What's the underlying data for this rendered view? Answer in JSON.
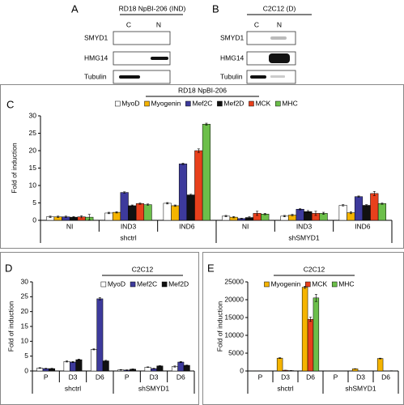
{
  "panel_a": {
    "letter": "A",
    "title": "RD18 NpBI-206 (IND)",
    "lanes": [
      "C",
      "N"
    ],
    "rows": [
      "SMYD1",
      "HMG14",
      "Tubulin"
    ]
  },
  "panel_b": {
    "letter": "B",
    "title": "C2C12 (D)",
    "lanes": [
      "C",
      "N"
    ],
    "rows": [
      "SMYD1",
      "HMG14",
      "Tubulin"
    ]
  },
  "chart_data": [
    {
      "type": "bar",
      "panel": "C",
      "title": "RD18 NpBI-206",
      "ylabel": "Fold of induction",
      "categories": [
        "NI",
        "IND3",
        "IND6",
        "NI",
        "IND3",
        "IND6"
      ],
      "groups": [
        "shctrl",
        "shSMYD1"
      ],
      "ylim": [
        0,
        30
      ],
      "yticks": [
        0,
        5,
        10,
        15,
        20,
        25,
        30
      ],
      "series": [
        {
          "name": "MyoD",
          "color": "#ffffff",
          "values": [
            1.0,
            2.1,
            4.9,
            1.2,
            1.2,
            4.3
          ],
          "errors": [
            0.2,
            0.2,
            0.2,
            0.2,
            0.2,
            0.2
          ]
        },
        {
          "name": "Myogenin",
          "color": "#f5b400",
          "values": [
            1.0,
            2.3,
            4.2,
            0.9,
            1.5,
            2.2
          ],
          "errors": [
            0.2,
            0.2,
            0.2,
            0.2,
            0.2,
            0.3
          ]
        },
        {
          "name": "Mef2C",
          "color": "#3d3a9c",
          "values": [
            1.0,
            8.0,
            16.2,
            0.5,
            3.2,
            6.8
          ],
          "errors": [
            0.2,
            0.2,
            0.2,
            0.1,
            0.2,
            0.2
          ]
        },
        {
          "name": "Mef2D",
          "color": "#111111",
          "values": [
            0.9,
            4.2,
            7.3,
            0.8,
            2.5,
            4.3
          ],
          "errors": [
            0.2,
            0.2,
            0.2,
            0.2,
            0.3,
            0.2
          ]
        },
        {
          "name": "MCK",
          "color": "#e8401c",
          "values": [
            1.0,
            4.8,
            20.0,
            2.0,
            2.0,
            7.7
          ],
          "errors": [
            0.3,
            0.2,
            0.5,
            0.6,
            0.6,
            0.6
          ]
        },
        {
          "name": "MHC",
          "color": "#6cbf4a",
          "values": [
            0.9,
            4.5,
            27.6,
            1.8,
            2.0,
            4.8
          ],
          "errors": [
            0.8,
            0.2,
            0.3,
            0.2,
            0.3,
            0.2
          ]
        }
      ]
    },
    {
      "type": "bar",
      "panel": "D",
      "title": "C2C12",
      "ylabel": "Fold of induction",
      "categories": [
        "P",
        "D3",
        "D6",
        "P",
        "D3",
        "D6"
      ],
      "groups": [
        "shctrl",
        "shSMYD1"
      ],
      "ylim": [
        0,
        30
      ],
      "yticks": [
        0,
        5,
        10,
        15,
        20,
        25,
        30
      ],
      "series": [
        {
          "name": "MyoD",
          "color": "#ffffff",
          "values": [
            1.0,
            3.2,
            7.3,
            0.4,
            1.3,
            1.5
          ],
          "errors": [
            0.1,
            0.2,
            0.2,
            0.1,
            0.1,
            0.2
          ]
        },
        {
          "name": "Mef2C",
          "color": "#3d3a9c",
          "values": [
            0.8,
            3.0,
            24.3,
            0.3,
            0.8,
            3.0
          ],
          "errors": [
            0.1,
            0.2,
            0.4,
            0.1,
            0.1,
            0.2
          ]
        },
        {
          "name": "Mef2D",
          "color": "#111111",
          "values": [
            0.8,
            3.8,
            3.4,
            0.6,
            1.7,
            1.9
          ],
          "errors": [
            0.1,
            0.2,
            0.2,
            0.1,
            0.1,
            0.1
          ]
        }
      ]
    },
    {
      "type": "bar",
      "panel": "E",
      "title": "C2C12",
      "ylabel": "Fold of induction",
      "categories": [
        "P",
        "D3",
        "D6",
        "P",
        "D3",
        "D6"
      ],
      "groups": [
        "shctrl",
        "shSMYD1"
      ],
      "ylim": [
        0,
        25000
      ],
      "yticks": [
        0,
        5000,
        10000,
        15000,
        20000,
        25000
      ],
      "series": [
        {
          "name": "Myogenin",
          "color": "#f5b400",
          "values": [
            20,
            3600,
            23500,
            20,
            600,
            3500
          ],
          "errors": [
            5,
            100,
            300,
            5,
            50,
            100
          ]
        },
        {
          "name": "MCK",
          "color": "#e8401c",
          "values": [
            10,
            200,
            14500,
            10,
            20,
            20
          ],
          "errors": [
            5,
            30,
            600,
            5,
            5,
            5
          ]
        },
        {
          "name": "MHC",
          "color": "#6cbf4a",
          "values": [
            10,
            100,
            20500,
            10,
            20,
            50
          ],
          "errors": [
            5,
            20,
            1000,
            5,
            5,
            10
          ]
        }
      ]
    }
  ]
}
